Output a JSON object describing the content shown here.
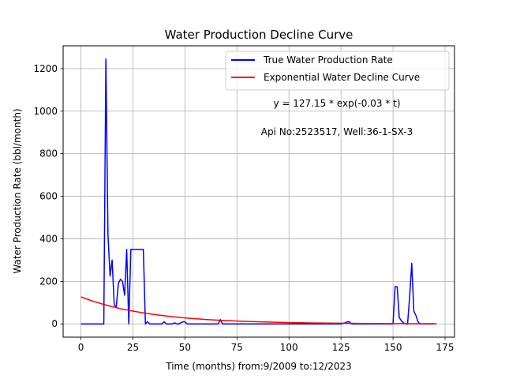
{
  "chart_data": {
    "type": "line",
    "title": "Water Production Decline Curve",
    "xlabel": "Time (months) from:9/2009 to:12/2023",
    "ylabel": "Water Production Rate (bbl/month)",
    "xlim": [
      -8.55,
      179.55
    ],
    "ylim": [
      -62.25,
      1307.25
    ],
    "xticks": [
      0,
      25,
      50,
      75,
      100,
      125,
      150,
      175
    ],
    "yticks": [
      0,
      200,
      400,
      600,
      800,
      1000,
      1200
    ],
    "grid": true,
    "legend_position": "top-right",
    "annotations": [
      "y = 127.15 * exp(-0.03 * t)",
      "Api No:2523517, Well:36-1-SX-3"
    ],
    "series": [
      {
        "name": "True Water Production Rate",
        "color": "#0000ff",
        "x": [
          0,
          1,
          2,
          3,
          4,
          5,
          6,
          7,
          8,
          9,
          10,
          11,
          12,
          13,
          14,
          15,
          16,
          17,
          18,
          19,
          20,
          21,
          22,
          23,
          24,
          25,
          26,
          27,
          28,
          29,
          30,
          31,
          32,
          33,
          34,
          35,
          36,
          37,
          38,
          39,
          40,
          41,
          42,
          43,
          44,
          45,
          46,
          47,
          48,
          49,
          50,
          51,
          52,
          55,
          60,
          65,
          66,
          67,
          68,
          69,
          70,
          80,
          90,
          100,
          110,
          120,
          125,
          127,
          128,
          129,
          130,
          131,
          140,
          150,
          151,
          152,
          153,
          154,
          155,
          156,
          157,
          158,
          159,
          160,
          161,
          162,
          163,
          164,
          165,
          170
        ],
        "y": [
          0,
          0,
          0,
          0,
          0,
          0,
          0,
          0,
          0,
          0,
          0,
          0,
          1245,
          420,
          225,
          300,
          90,
          80,
          190,
          210,
          200,
          135,
          350,
          0,
          350,
          350,
          350,
          350,
          350,
          350,
          350,
          0,
          10,
          0,
          0,
          0,
          0,
          0,
          0,
          0,
          10,
          0,
          0,
          0,
          0,
          5,
          0,
          0,
          5,
          10,
          10,
          0,
          0,
          0,
          0,
          0,
          0,
          20,
          0,
          0,
          0,
          0,
          0,
          0,
          0,
          0,
          0,
          5,
          10,
          10,
          0,
          0,
          0,
          0,
          175,
          175,
          30,
          15,
          5,
          0,
          0,
          130,
          285,
          60,
          40,
          10,
          0,
          0,
          0,
          0
        ]
      },
      {
        "name": "Exponential Water Decline Curve",
        "color": "#ff0000",
        "x": [
          0,
          5,
          10,
          15,
          20,
          25,
          30,
          35,
          40,
          45,
          50,
          55,
          60,
          65,
          70,
          75,
          80,
          85,
          90,
          95,
          100,
          105,
          110,
          115,
          120,
          125,
          130,
          135,
          140,
          145,
          150,
          155,
          160,
          165,
          171
        ],
        "y": [
          127.15,
          109.44,
          94.19,
          81.07,
          69.78,
          60.06,
          51.69,
          44.49,
          38.29,
          32.96,
          28.37,
          24.41,
          21.01,
          18.09,
          15.57,
          13.4,
          11.53,
          9.93,
          8.54,
          7.35,
          6.33,
          5.45,
          4.69,
          4.03,
          3.47,
          2.99,
          2.57,
          2.21,
          1.91,
          1.64,
          1.41,
          1.21,
          1.05,
          0.9,
          0.75
        ]
      }
    ]
  }
}
